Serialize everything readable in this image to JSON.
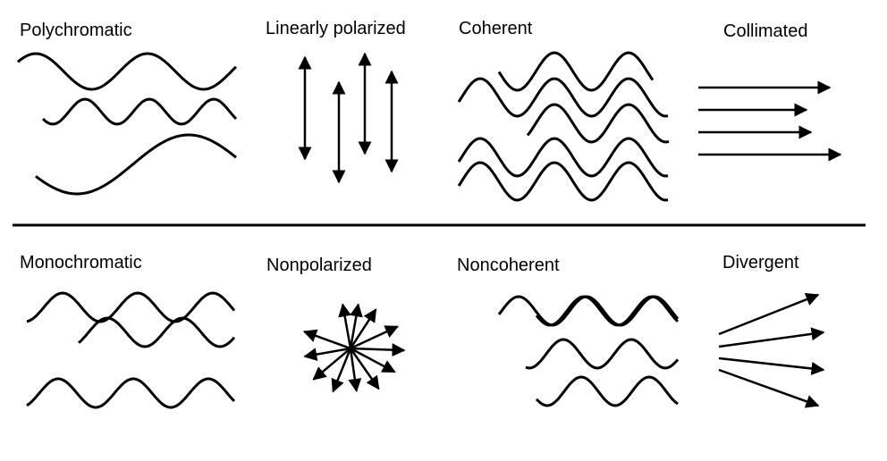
{
  "colors": {
    "stroke": "#000000",
    "background": "#ffffff"
  },
  "top_row": {
    "polychromatic": {
      "label": "Polychromatic"
    },
    "linearly_polarized": {
      "label": "Linearly polarized"
    },
    "coherent": {
      "label": "Coherent"
    },
    "collimated": {
      "label": "Collimated"
    }
  },
  "bottom_row": {
    "monochromatic": {
      "label": "Monochromatic"
    },
    "nonpolarized": {
      "label": "Nonpolarized"
    },
    "noncoherent": {
      "label": "Noncoherent"
    },
    "divergent": {
      "label": "Divergent"
    }
  }
}
